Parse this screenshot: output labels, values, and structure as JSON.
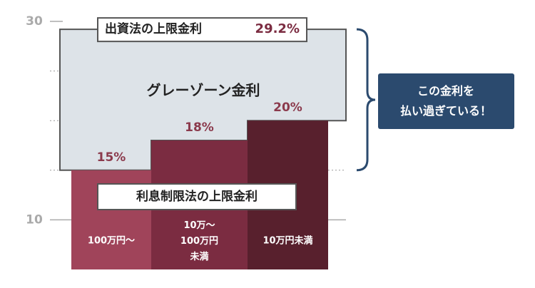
{
  "chart_data": {
    "type": "bar",
    "categories": [
      "100万円〜",
      "10万〜\n100万円\n未満",
      "10万円未満"
    ],
    "values": [
      15,
      18,
      20
    ],
    "value_labels": [
      "15%",
      "18%",
      "20%"
    ],
    "colors": [
      "#a0445a",
      "#7b2c41",
      "#58202d"
    ],
    "ylim": [
      5,
      30
    ],
    "yticks": [
      10,
      30
    ],
    "dotted_grid": [
      15,
      20,
      25
    ],
    "upper_limit": {
      "label": "出資法の上限金利",
      "value": 29.2,
      "value_label": "29.2%"
    },
    "zone_label": "グレーゾーン金利",
    "lower_limit_label": "利息制限法の上限金利",
    "callout": "この金利を\n払い過ぎている！"
  }
}
